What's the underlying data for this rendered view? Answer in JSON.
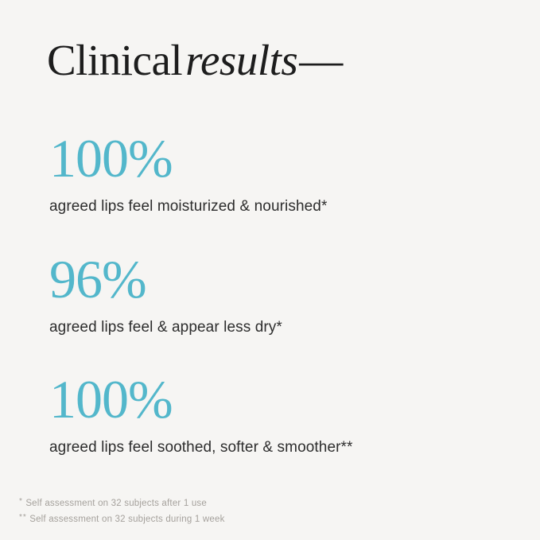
{
  "title": {
    "regular": "Clinical",
    "italic": "results",
    "dash": "—"
  },
  "stats": [
    {
      "value": "100%",
      "caption": "agreed lips feel moisturized & nourished*"
    },
    {
      "value": "96%",
      "caption": "agreed lips feel & appear less dry*"
    },
    {
      "value": "100%",
      "caption": "agreed lips feel soothed, softer & smoother**"
    }
  ],
  "footnotes": [
    {
      "marker": "*",
      "text": "Self assessment on 32 subjects after 1 use"
    },
    {
      "marker": "**",
      "text": "Self assessment on 32 subjects during 1 week"
    }
  ],
  "colors": {
    "background": "#f6f5f3",
    "accent_teal": "#53b7cb",
    "title_text": "#1d1d1d",
    "caption_text": "#2d2d2d",
    "footnote_text": "#a5a19c"
  }
}
